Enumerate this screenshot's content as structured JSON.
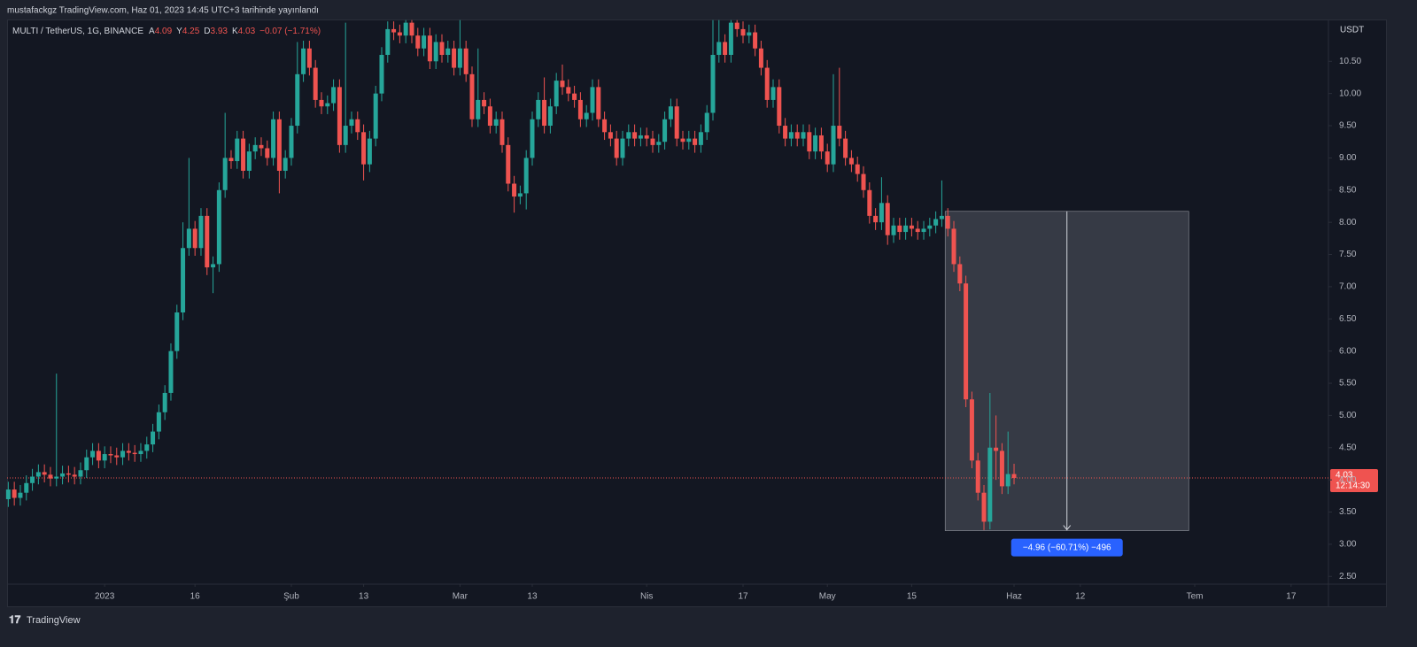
{
  "page": {
    "caption": "mustafackgz TradingView.com, Haz 01, 2023 14:45 UTC+3 tarihinde yayınlandı",
    "brand": "TradingView"
  },
  "chart_data": {
    "type": "candlestick",
    "symbol": "MULTI / TetherUS, 1G, BINANCE",
    "legend": {
      "labels": [
        "A",
        "Y",
        "D",
        "K"
      ],
      "values_text": [
        "4.09",
        "4.25",
        "3.93",
        "4.03"
      ],
      "change": "−0.07 (−1.71%)"
    },
    "currency": "USDT",
    "up_color": "#26a69a",
    "down_color": "#ef5350",
    "grid": false,
    "x": [
      -16,
      -15,
      -14,
      -13,
      -12,
      -11,
      -10,
      -9,
      -8,
      -7,
      -6,
      -5,
      -4,
      -3,
      -2,
      -1,
      0,
      1,
      2,
      3,
      4,
      5,
      6,
      7,
      8,
      9,
      10,
      11,
      12,
      13,
      14,
      15,
      16,
      17,
      18,
      19,
      20,
      21,
      22,
      23,
      24,
      25,
      26,
      27,
      28,
      29,
      30,
      31,
      32,
      33,
      34,
      35,
      36,
      37,
      38,
      39,
      40,
      41,
      42,
      43,
      44,
      45,
      46,
      47,
      48,
      49,
      50,
      51,
      52,
      53,
      54,
      55,
      56,
      57,
      58,
      59,
      60,
      61,
      62,
      63,
      64,
      65,
      66,
      67,
      68,
      69,
      70,
      71,
      72,
      73,
      74,
      75,
      76,
      77,
      78,
      79,
      80,
      81,
      82,
      83,
      84,
      85,
      86,
      87,
      88,
      89,
      90,
      91,
      92,
      93,
      94,
      95,
      96,
      97,
      98,
      99,
      100,
      101,
      102,
      103,
      104,
      105,
      106,
      107,
      108,
      109,
      110,
      111,
      112,
      113,
      114,
      115,
      116,
      117,
      118,
      119,
      120,
      121,
      122,
      123,
      124,
      125,
      126,
      127,
      128,
      129,
      130,
      131,
      132,
      133,
      134,
      135,
      136,
      137,
      138,
      139,
      140,
      141,
      142,
      143,
      144,
      145,
      146,
      147,
      148,
      149,
      150,
      151
    ],
    "open": [
      3.7,
      3.85,
      3.72,
      3.8,
      3.95,
      4.05,
      4.12,
      4.08,
      4.02,
      4.05,
      4.1,
      4.08,
      4.05,
      4.15,
      4.35,
      4.45,
      4.3,
      4.4,
      4.38,
      4.35,
      4.45,
      4.42,
      4.4,
      4.45,
      4.55,
      4.75,
      5.05,
      5.35,
      6.0,
      6.6,
      7.6,
      7.9,
      7.6,
      8.1,
      7.3,
      7.35,
      8.5,
      9.0,
      8.95,
      9.3,
      8.8,
      9.1,
      9.2,
      9.15,
      9.0,
      9.6,
      8.8,
      9.0,
      9.5,
      10.3,
      10.7,
      10.4,
      9.9,
      9.8,
      9.85,
      10.1,
      9.2,
      9.5,
      9.6,
      9.4,
      8.9,
      9.3,
      10.0,
      10.6,
      11.0,
      10.95,
      10.9,
      11.1,
      10.9,
      10.7,
      10.9,
      10.5,
      10.8,
      10.6,
      10.7,
      10.4,
      10.7,
      10.3,
      9.6,
      9.9,
      9.8,
      9.5,
      9.6,
      9.2,
      8.6,
      8.4,
      8.45,
      9.0,
      9.6,
      9.9,
      9.5,
      9.8,
      10.2,
      10.1,
      10.0,
      9.9,
      9.6,
      9.7,
      10.1,
      9.6,
      9.4,
      9.3,
      9.0,
      9.3,
      9.4,
      9.3,
      9.35,
      9.3,
      9.2,
      9.25,
      9.6,
      9.8,
      9.3,
      9.25,
      9.3,
      9.2,
      9.4,
      9.7,
      10.6,
      10.8,
      10.6,
      11.1,
      11.0,
      10.9,
      10.95,
      10.7,
      10.4,
      9.9,
      10.1,
      9.5,
      9.3,
      9.4,
      9.3,
      9.4,
      9.1,
      9.35,
      9.1,
      8.9,
      9.5,
      9.3,
      9.0,
      8.9,
      8.75,
      8.5,
      8.1,
      8.0,
      8.3,
      7.8,
      7.95,
      7.85,
      7.95,
      7.9,
      7.85,
      7.9,
      7.95,
      8.05,
      8.1,
      7.9,
      7.35,
      7.05,
      5.25,
      4.3,
      3.8,
      3.35,
      4.5,
      4.45,
      3.9,
      4.09
    ],
    "high": [
      3.97,
      3.97,
      3.92,
      4.07,
      4.17,
      4.24,
      4.24,
      4.2,
      5.65,
      4.22,
      4.22,
      4.2,
      4.27,
      4.47,
      4.57,
      4.57,
      4.52,
      4.52,
      4.5,
      4.57,
      4.57,
      4.54,
      4.57,
      4.67,
      4.87,
      5.17,
      5.47,
      6.12,
      6.72,
      8.0,
      9.0,
      8.02,
      8.22,
      8.22,
      7.47,
      8.62,
      9.7,
      9.12,
      9.42,
      9.42,
      9.22,
      9.32,
      9.32,
      9.27,
      9.72,
      9.72,
      9.12,
      9.62,
      10.8,
      10.82,
      10.82,
      10.52,
      10.02,
      9.97,
      10.22,
      10.22,
      11.1,
      9.72,
      9.72,
      9.52,
      9.42,
      10.12,
      10.72,
      11.12,
      11.12,
      11.07,
      11.14,
      11.14,
      11.02,
      11.02,
      11.02,
      10.92,
      10.92,
      10.82,
      10.82,
      11.14,
      10.82,
      10.42,
      10.7,
      10.02,
      9.92,
      9.72,
      9.72,
      9.32,
      8.72,
      8.57,
      9.12,
      9.72,
      10.02,
      10.25,
      9.92,
      10.32,
      10.45,
      10.22,
      10.12,
      10.02,
      9.82,
      10.22,
      10.22,
      9.72,
      9.52,
      9.42,
      9.42,
      9.52,
      9.52,
      9.47,
      9.47,
      9.42,
      9.37,
      9.72,
      9.92,
      9.92,
      9.42,
      9.42,
      9.42,
      9.52,
      9.82,
      11.14,
      11.14,
      10.92,
      11.14,
      11.14,
      11.12,
      11.07,
      11.07,
      10.82,
      10.52,
      10.22,
      10.22,
      9.62,
      9.52,
      9.52,
      9.52,
      9.52,
      9.47,
      9.47,
      9.22,
      10.3,
      10.4,
      9.42,
      9.12,
      9.02,
      8.87,
      8.62,
      8.22,
      8.7,
      8.42,
      8.07,
      8.07,
      8.07,
      8.07,
      8.02,
      8.02,
      8.07,
      8.17,
      8.65,
      8.22,
      8.02,
      7.47,
      7.17,
      5.37,
      4.42,
      3.92,
      5.35,
      5.0,
      4.57,
      4.75,
      4.25
    ],
    "low": [
      3.58,
      3.6,
      3.6,
      3.68,
      3.83,
      3.93,
      3.96,
      3.9,
      3.9,
      3.93,
      3.96,
      3.93,
      3.93,
      4.03,
      4.23,
      4.18,
      4.18,
      4.26,
      4.23,
      4.23,
      4.3,
      4.28,
      4.28,
      4.33,
      4.43,
      4.63,
      4.93,
      5.23,
      5.88,
      6.48,
      7.48,
      7.48,
      7.48,
      7.18,
      6.9,
      7.23,
      8.38,
      8.83,
      8.83,
      8.68,
      8.68,
      8.98,
      9.03,
      8.88,
      8.88,
      8.45,
      8.68,
      8.88,
      9.38,
      10.18,
      10.28,
      9.78,
      9.68,
      9.68,
      9.73,
      9.08,
      9.08,
      9.38,
      9.28,
      8.65,
      8.78,
      9.18,
      9.88,
      10.48,
      10.83,
      10.78,
      10.78,
      10.78,
      10.58,
      10.58,
      10.38,
      10.38,
      10.48,
      10.48,
      10.28,
      10.28,
      10.18,
      9.48,
      9.48,
      9.68,
      9.38,
      9.38,
      9.08,
      8.48,
      8.15,
      8.28,
      8.2,
      8.88,
      9.48,
      9.38,
      9.38,
      9.68,
      9.98,
      9.88,
      9.78,
      9.48,
      9.48,
      9.58,
      9.48,
      9.28,
      9.18,
      8.88,
      8.88,
      9.18,
      9.18,
      9.18,
      9.18,
      9.08,
      9.08,
      9.13,
      9.48,
      9.18,
      9.13,
      9.13,
      9.08,
      9.08,
      9.28,
      9.58,
      10.48,
      10.48,
      10.48,
      10.88,
      10.78,
      10.78,
      10.58,
      10.28,
      9.78,
      9.78,
      9.38,
      9.18,
      9.18,
      9.18,
      9.18,
      8.98,
      8.98,
      8.98,
      8.78,
      8.78,
      9.18,
      8.88,
      8.78,
      8.63,
      8.38,
      7.98,
      7.88,
      7.88,
      7.65,
      7.68,
      7.73,
      7.73,
      7.78,
      7.73,
      7.73,
      7.78,
      7.83,
      7.93,
      7.78,
      7.23,
      6.93,
      5.13,
      4.18,
      3.68,
      3.22,
      3.23,
      4.0,
      3.78,
      3.78,
      3.93
    ],
    "close": [
      3.85,
      3.72,
      3.8,
      3.95,
      4.05,
      4.12,
      4.08,
      4.02,
      4.05,
      4.1,
      4.08,
      4.05,
      4.15,
      4.35,
      4.45,
      4.3,
      4.4,
      4.38,
      4.35,
      4.45,
      4.42,
      4.4,
      4.45,
      4.55,
      4.75,
      5.05,
      5.35,
      6.0,
      6.6,
      7.6,
      7.9,
      7.6,
      8.1,
      7.3,
      7.35,
      8.5,
      9.0,
      8.95,
      9.3,
      8.8,
      9.1,
      9.2,
      9.15,
      9.0,
      9.6,
      8.8,
      9.0,
      9.5,
      10.3,
      10.7,
      10.4,
      9.9,
      9.8,
      9.85,
      10.1,
      9.2,
      9.5,
      9.6,
      9.4,
      8.9,
      9.3,
      10.0,
      10.6,
      11.0,
      10.95,
      10.9,
      11.1,
      10.9,
      10.7,
      10.9,
      10.5,
      10.8,
      10.6,
      10.7,
      10.4,
      10.7,
      10.3,
      9.6,
      9.9,
      9.8,
      9.5,
      9.6,
      9.2,
      8.6,
      8.4,
      8.45,
      9.0,
      9.6,
      9.9,
      9.5,
      9.8,
      10.2,
      10.1,
      10.0,
      9.9,
      9.6,
      9.7,
      10.1,
      9.6,
      9.4,
      9.3,
      9.0,
      9.3,
      9.4,
      9.3,
      9.35,
      9.3,
      9.2,
      9.25,
      9.6,
      9.8,
      9.3,
      9.25,
      9.3,
      9.2,
      9.4,
      9.7,
      10.6,
      10.8,
      10.6,
      11.1,
      11.0,
      10.9,
      10.95,
      10.7,
      10.4,
      9.9,
      10.1,
      9.5,
      9.3,
      9.4,
      9.3,
      9.4,
      9.1,
      9.35,
      9.1,
      8.9,
      9.5,
      9.3,
      9.0,
      8.9,
      8.75,
      8.5,
      8.1,
      8.0,
      8.3,
      7.8,
      7.95,
      7.85,
      7.95,
      7.9,
      7.85,
      7.9,
      7.95,
      8.05,
      8.1,
      7.9,
      7.35,
      7.05,
      5.25,
      4.3,
      3.8,
      3.35,
      4.5,
      4.45,
      3.9,
      4.09,
      4.03
    ],
    "xlim": [
      -16.2,
      203.2
    ],
    "xticks": [
      {
        "value": 0,
        "label": "2023"
      },
      {
        "value": 15,
        "label": "16"
      },
      {
        "value": 31,
        "label": "Şub"
      },
      {
        "value": 43,
        "label": "13"
      },
      {
        "value": 59,
        "label": "Mar"
      },
      {
        "value": 71,
        "label": "13"
      },
      {
        "value": 90,
        "label": "Nis"
      },
      {
        "value": 106,
        "label": "17"
      },
      {
        "value": 120,
        "label": "May"
      },
      {
        "value": 134,
        "label": "15"
      },
      {
        "value": 151,
        "label": "Haz"
      },
      {
        "value": 162,
        "label": "12"
      },
      {
        "value": 181,
        "label": "Tem"
      },
      {
        "value": 197,
        "label": "17"
      }
    ],
    "ylim": [
      2.38,
      11.15
    ],
    "yticks": [
      {
        "value": 2.5,
        "label": "2.50"
      },
      {
        "value": 3,
        "label": "3.00"
      },
      {
        "value": 3.5,
        "label": "3.50"
      },
      {
        "value": 4,
        "label": "4.00"
      },
      {
        "value": 4.5,
        "label": "4.50"
      },
      {
        "value": 5,
        "label": "5.00"
      },
      {
        "value": 5.5,
        "label": "5.50"
      },
      {
        "value": 6,
        "label": "6.00"
      },
      {
        "value": 6.5,
        "label": "6.50"
      },
      {
        "value": 7,
        "label": "7.00"
      },
      {
        "value": 7.5,
        "label": "7.50"
      },
      {
        "value": 8,
        "label": "8.00"
      },
      {
        "value": 8.5,
        "label": "8.50"
      },
      {
        "value": 9,
        "label": "9.00"
      },
      {
        "value": 9.5,
        "label": "9.50"
      },
      {
        "value": 10,
        "label": "10.00"
      },
      {
        "value": 10.5,
        "label": "10.50"
      }
    ],
    "last_price": {
      "value": 4.03,
      "label": "4.03",
      "countdown": "12:14:30"
    },
    "measure": {
      "x": [
        140,
        180
      ],
      "from": 8.17,
      "to": 3.21,
      "label": "−4.96 (−60.71%) −496"
    }
  }
}
